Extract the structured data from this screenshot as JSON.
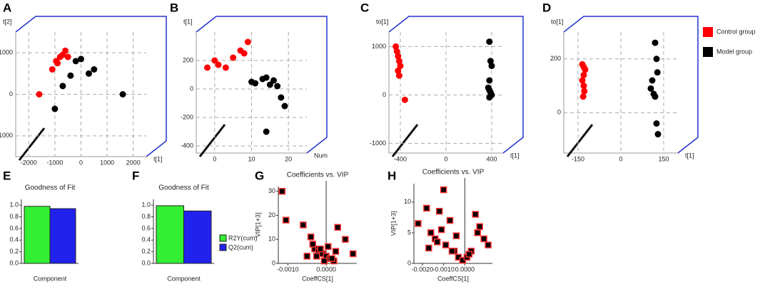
{
  "legend": [
    {
      "name": "Control group",
      "color": "#ff0000"
    },
    {
      "name": "Model group",
      "color": "#000000"
    }
  ],
  "chart_data": [
    {
      "type": "scatter3d",
      "label": "A",
      "xlabel": "t[1]",
      "ylabel": "t[2]",
      "xlim": [
        -2500,
        2500
      ],
      "ylim": [
        -1500,
        1500
      ],
      "xticks": [
        -2000,
        -1000,
        0,
        1000,
        2000
      ],
      "yticks": [
        -1000,
        0,
        1000
      ],
      "series": [
        {
          "color": "#ff0000",
          "x": [
            -1600,
            -1100,
            -900,
            -800,
            -700,
            -600,
            -500,
            -950
          ],
          "values": [
            0,
            600,
            750,
            900,
            950,
            1050,
            900,
            800
          ]
        },
        {
          "color": "#000000",
          "x": [
            -700,
            -400,
            -200,
            0,
            300,
            500,
            1600,
            -1000
          ],
          "values": [
            200,
            450,
            800,
            850,
            500,
            600,
            0,
            -350
          ]
        }
      ]
    },
    {
      "type": "scatter3d",
      "label": "B",
      "xlabel": "Num",
      "ylabel": "t[1]",
      "xlim": [
        -5,
        25
      ],
      "ylim": [
        -450,
        400
      ],
      "xticks": [
        0,
        10,
        20
      ],
      "yticks": [
        -400,
        -200,
        0,
        200
      ],
      "series": [
        {
          "color": "#ff0000",
          "x": [
            -2,
            0,
            1,
            3,
            5,
            7,
            8,
            9
          ],
          "values": [
            150,
            200,
            170,
            150,
            220,
            270,
            250,
            330
          ]
        },
        {
          "color": "#000000",
          "x": [
            10,
            11,
            13,
            14,
            15,
            16,
            17,
            18,
            19,
            14
          ],
          "values": [
            50,
            40,
            70,
            80,
            30,
            60,
            20,
            -60,
            -120,
            -300
          ]
        }
      ]
    },
    {
      "type": "scatter3d",
      "label": "C",
      "xlabel": "t[1]",
      "ylabel": "to[1]",
      "xlim": [
        -500,
        500
      ],
      "ylim": [
        -1200,
        1300
      ],
      "xticks": [
        -400,
        0,
        400
      ],
      "yticks": [
        -1000,
        0,
        1000
      ],
      "series": [
        {
          "color": "#ff0000",
          "x": [
            -440,
            -430,
            -420,
            -410,
            -400,
            -420,
            -410,
            -360
          ],
          "values": [
            1000,
            900,
            800,
            700,
            600,
            500,
            400,
            -100
          ]
        },
        {
          "color": "#000000",
          "x": [
            380,
            390,
            400,
            380,
            370,
            380,
            390,
            400,
            380
          ],
          "values": [
            1100,
            700,
            600,
            300,
            150,
            100,
            50,
            0,
            -50
          ]
        }
      ]
    },
    {
      "type": "scatter3d",
      "label": "D",
      "xlabel": "t[1]",
      "ylabel": "to[1]",
      "xlim": [
        -200,
        200
      ],
      "ylim": [
        -150,
        300
      ],
      "xticks": [
        -150,
        0,
        150
      ],
      "yticks": [
        0,
        200
      ],
      "series": [
        {
          "color": "#ff0000",
          "x": [
            -135,
            -130,
            -125,
            -130,
            -135,
            -130,
            -128,
            -132
          ],
          "values": [
            180,
            170,
            160,
            140,
            120,
            100,
            80,
            60
          ]
        },
        {
          "color": "#000000",
          "x": [
            120,
            125,
            128,
            110,
            105,
            115,
            120,
            125,
            130
          ],
          "values": [
            260,
            200,
            150,
            120,
            90,
            70,
            60,
            -40,
            -80
          ]
        }
      ]
    },
    {
      "type": "bar",
      "label": "E",
      "title": "Goodness of Fit",
      "xlabel": "Component",
      "categories": [
        null
      ],
      "ylim": [
        0,
        1.1
      ],
      "yticks": [
        {
          "value": 0,
          "label": "0.0"
        },
        0.2,
        0.4,
        0.6,
        0.8,
        {
          "value": 1,
          "label": "1.0"
        }
      ],
      "legend": false,
      "series": [
        {
          "name": "R2Y(cum)",
          "color": "#33ee33",
          "values": [
            0.98
          ]
        },
        {
          "name": "Q2(cum)",
          "color": "#2222ee",
          "values": [
            0.94
          ]
        }
      ]
    },
    {
      "type": "bar",
      "label": "F",
      "title": "Goodness of Fit",
      "xlabel": "Component",
      "categories": [
        null
      ],
      "ylim": [
        0,
        1.1
      ],
      "yticks": [
        {
          "value": 0,
          "label": "0.0"
        },
        0.2,
        0.4,
        0.6,
        0.8,
        {
          "value": 1,
          "label": "1.0"
        }
      ],
      "legend": true,
      "series": [
        {
          "name": "R2Y(cum)",
          "color": "#33ee33",
          "values": [
            0.99
          ]
        },
        {
          "name": "Q2(cum)",
          "color": "#2222ee",
          "values": [
            0.9
          ]
        }
      ]
    },
    {
      "type": "scatter",
      "label": "G",
      "title": "Coefficients vs. VIP",
      "xlabel": "CoeffCS[1]",
      "ylabel": "VIP[1+3]",
      "xlim": [
        -0.00125,
        0.0008
      ],
      "ylim": [
        0,
        32
      ],
      "xticks": [
        {
          "value": -0.001,
          "label": "-0.0010"
        },
        {
          "value": 0,
          "label": "0.0000"
        }
      ],
      "yticks": [
        0,
        10,
        20,
        30
      ],
      "series": [
        {
          "color": "#000000",
          "edgecolor": "#ff3333",
          "x": [
            -0.00115,
            -0.00105,
            -0.0006,
            -0.0004,
            -0.0003,
            -0.0002,
            -0.0001,
            0,
            0.0001,
            0.0002,
            0.0003,
            0.0005,
            0.0007,
            -0.0005,
            -0.00035,
            -0.00015,
            5e-05,
            0.00015,
            -0.00025,
            -5e-05,
            0.00025
          ],
          "values": [
            30,
            18,
            16,
            11,
            6,
            5,
            4,
            3,
            2,
            1,
            15,
            10,
            4,
            3,
            8,
            6,
            7,
            2,
            3,
            1,
            5
          ]
        }
      ]
    },
    {
      "type": "scatter",
      "label": "H",
      "title": "Coefficients vs. VIP",
      "xlabel": "CoeffCS[1]",
      "ylabel": "VIP[1+3]",
      "xlim": [
        -0.0024,
        0.0013
      ],
      "ylim": [
        0,
        13
      ],
      "xticks": [
        {
          "value": -0.002,
          "label": "-0.0020"
        },
        {
          "value": -0.001,
          "label": "-0.0010"
        },
        {
          "value": 0,
          "label": "0.0000"
        }
      ],
      "yticks": [
        0,
        5,
        10
      ],
      "series": [
        {
          "color": "#000000",
          "edgecolor": "#ff3333",
          "x": [
            -0.0022,
            -0.0018,
            -0.0016,
            -0.0014,
            -0.0012,
            -0.001,
            -0.0009,
            -0.0007,
            -0.0005,
            -0.0003,
            -0.0001,
            0.0001,
            0.0003,
            0.0005,
            0.0007,
            0.0009,
            0.0011,
            -0.0017,
            -0.0011,
            -0.0004,
            0.0002,
            0.0006,
            -0.0013,
            -0.0006
          ],
          "values": [
            6.5,
            9,
            5,
            4,
            8.5,
            12,
            3,
            7,
            2,
            1,
            0.5,
            1,
            2,
            8,
            6,
            4,
            3,
            2.5,
            5.5,
            4.5,
            1.5,
            5,
            3.5,
            2
          ]
        }
      ]
    }
  ]
}
